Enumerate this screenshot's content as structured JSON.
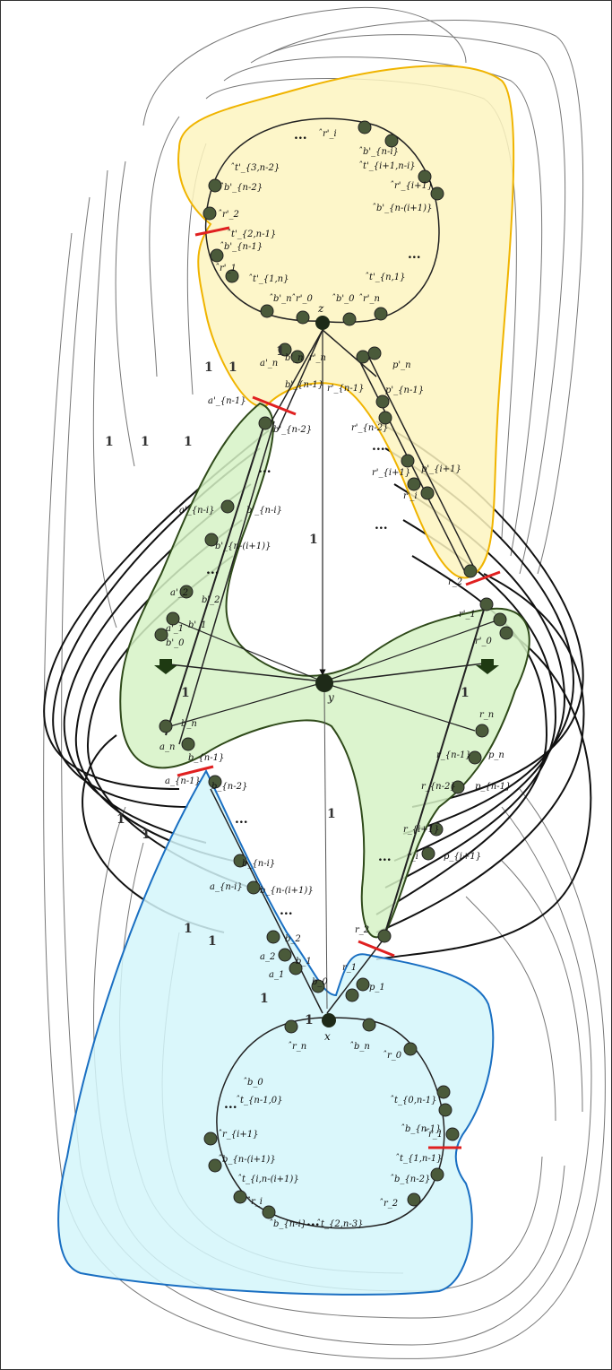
{
  "diagram": {
    "top_region": {
      "center": "z",
      "labels": [
        "̂r'_i",
        "̂b'_{n-i}",
        "̂t'_{i+1,n-i}",
        "̂r'_{i+1}",
        "̂b'_{n-(i+1)}",
        "̂t'_{3,n-2}",
        "̂b'_{n-2}",
        "̂r'_2",
        "̂t'_{2,n-1}",
        "̂b'_{n-1}",
        "̂r'_1",
        "̂t'_{1,n}",
        "̂b'_n",
        "̂r'_0",
        "̂b'_0",
        "̂r'_n",
        "̂t'_{n,1}",
        "a'_n",
        "b'_n",
        "r'_n",
        "p'_n",
        "a'_{n-1}",
        "b'_{n-1}",
        "r'_{n-1}",
        "p'_{n-1}",
        "b'_{n-2}",
        "r'_{n-2}",
        "b'_{n-i}",
        "a'_{n-i}",
        "b'_{n-(i+1)}",
        "r'_{i+1}",
        "p'_{i+1}",
        "r'_i",
        "a'_2",
        "b'_2",
        "a'_1",
        "b'_1",
        "b'_0",
        "r'_1",
        "r'_0",
        "r_2"
      ]
    },
    "middle_region": {
      "center": "y",
      "labels": [
        "b_n",
        "a_n",
        "b_{n-1}",
        "a_{n-1}",
        "b_{n-2}",
        "r_n",
        "r_{n-1}",
        "p_n",
        "r_{n-2}",
        "p_{n-1}",
        "r_{i+1}",
        "r_i",
        "p_{i+1}",
        "r_2"
      ]
    },
    "bottom_region": {
      "center": "x",
      "labels": [
        "b_{n-i}",
        "a_{n-i}",
        "b_{n-(i+1)}",
        "b_2",
        "a_2",
        "b_1",
        "a_1",
        "b_0",
        "r_1",
        "p_1",
        "̂r_n",
        "̂b_n",
        "̂r_0",
        "̂b_0",
        "̂t_{n-1,0}",
        "̂t_{0,n-1}",
        "̂b_{n-1}",
        "̂r_1",
        "̂r_{i+1}",
        "̂b_{n-(i+1)}",
        "̂t_{i,n-(i+1)}",
        "̂r_i",
        "̂b_{n-i}",
        "̂t_{1,n-1}",
        "̂b_{n-2}",
        "̂r_2",
        "̂t_{2,n-3}"
      ]
    },
    "edge_weight_label": "1",
    "ellipsis": "..."
  },
  "colors": {
    "top_fill": "#fdf5c0",
    "top_stroke": "#f0b400",
    "middle_fill": "#d6f2c6",
    "middle_stroke": "#2f4a1a",
    "bottom_fill": "#d3f6fa",
    "bottom_stroke": "#1a6fc2",
    "node": "#4a5a3a",
    "cut": "#e02020"
  }
}
